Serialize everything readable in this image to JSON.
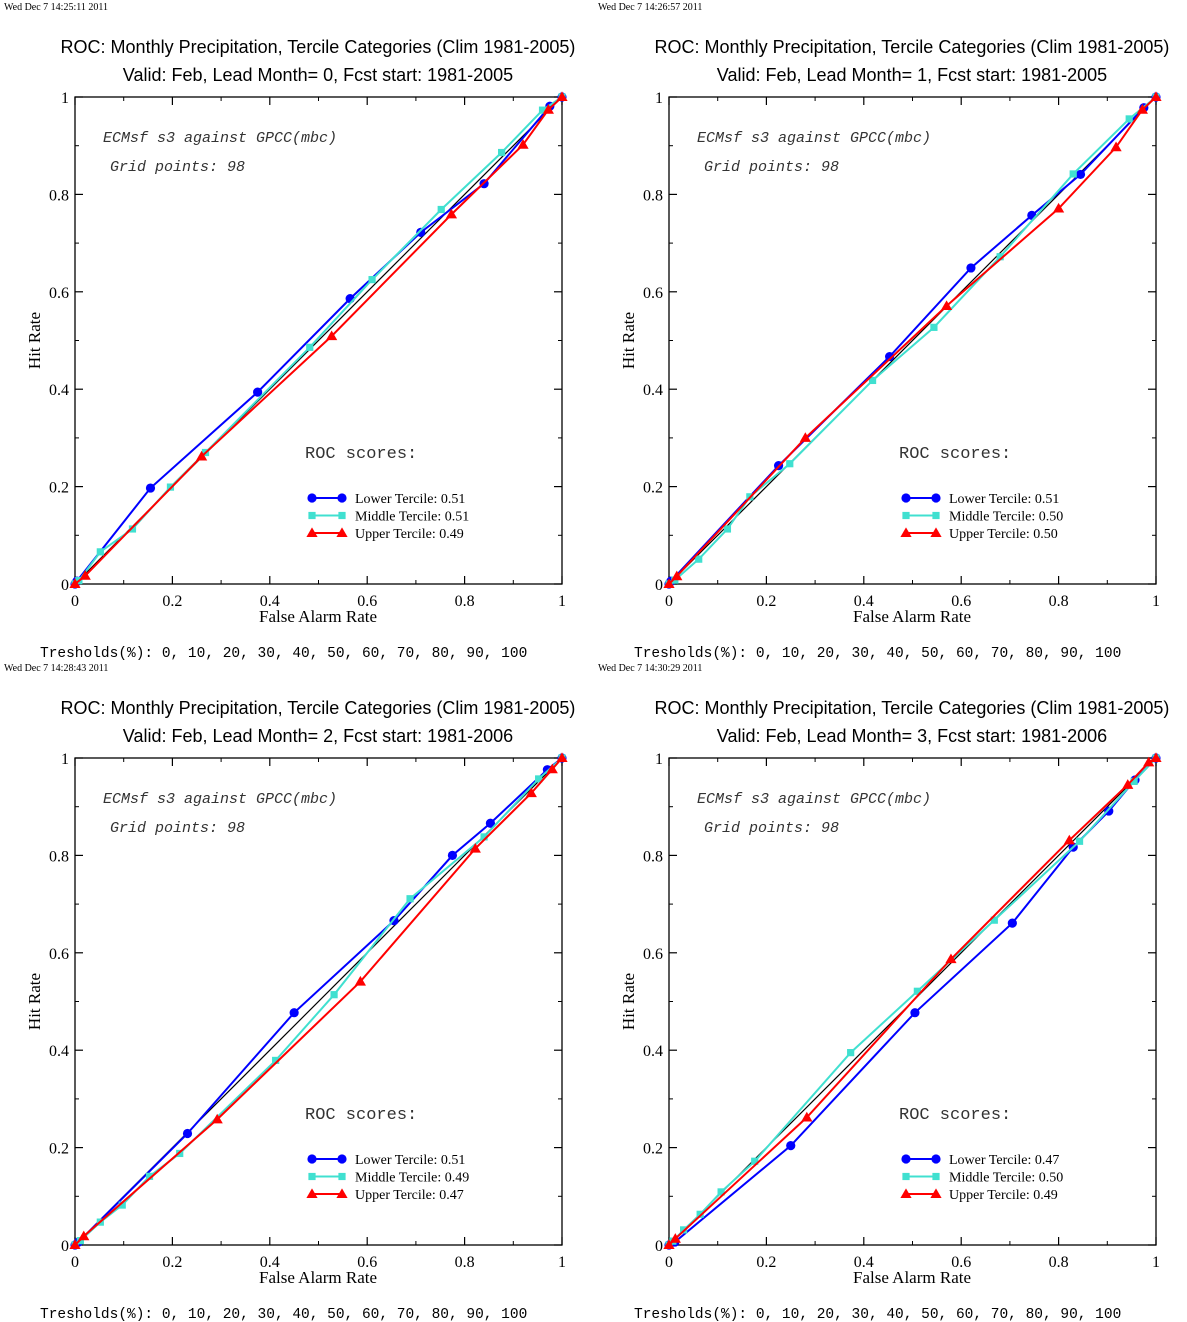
{
  "chart_data": [
    {
      "type": "line",
      "timestamp": "Wed Dec  7 14:25:11 2011",
      "title": "ROC: Monthly Precipitation, Tercile Categories (Clim 1981-2005)",
      "subtitle": "Valid: Feb, Lead Month= 0, Fcst start: 1981-2005",
      "xlabel": "False Alarm Rate",
      "ylabel": "Hit Rate",
      "xlim": [
        0,
        1
      ],
      "ylim": [
        0,
        1
      ],
      "xticks": [
        "0",
        "0.2",
        "0.4",
        "0.6",
        "0.8",
        "1"
      ],
      "yticks": [
        "0",
        "0.2",
        "0.4",
        "0.6",
        "0.8",
        "1"
      ],
      "note_line1": "ECMsf s3 against GPCC(mbc)",
      "note_line2": "Grid points:   98",
      "scores_heading": "ROC scores:",
      "thresholds": "Tresholds(%): 0, 10, 20, 30, 40, 50, 60, 70, 80, 90, 100",
      "diagonal": true,
      "series": [
        {
          "name": "Lower Tercile: 0.51",
          "color": "#0000ff",
          "marker": "circle",
          "x": [
            0,
            0.004,
            0.155,
            0.375,
            0.565,
            0.71,
            0.84,
            0.975,
            1
          ],
          "y": [
            0,
            0.006,
            0.197,
            0.394,
            0.586,
            0.722,
            0.822,
            0.981,
            1
          ]
        },
        {
          "name": "Middle Tercile: 0.51",
          "color": "#40e0d0",
          "marker": "square",
          "x": [
            0,
            0.008,
            0.052,
            0.118,
            0.196,
            0.268,
            0.482,
            0.61,
            0.752,
            0.876,
            0.96,
            1
          ],
          "y": [
            0,
            0.007,
            0.066,
            0.113,
            0.199,
            0.27,
            0.486,
            0.625,
            0.769,
            0.886,
            0.973,
            1
          ]
        },
        {
          "name": "Upper Tercile: 0.49",
          "color": "#ff0000",
          "marker": "triangle",
          "x": [
            0,
            0.021,
            0.26,
            0.527,
            0.773,
            0.92,
            0.972,
            1
          ],
          "y": [
            0,
            0.017,
            0.262,
            0.509,
            0.759,
            0.902,
            0.974,
            1
          ]
        }
      ]
    },
    {
      "type": "line",
      "timestamp": "Wed Dec  7 14:26:57 2011",
      "title": "ROC: Monthly Precipitation, Tercile Categories (Clim 1981-2005)",
      "subtitle": "Valid: Feb, Lead Month= 1, Fcst start: 1981-2005",
      "xlabel": "False Alarm Rate",
      "ylabel": "Hit Rate",
      "xlim": [
        0,
        1
      ],
      "ylim": [
        0,
        1
      ],
      "xticks": [
        "0",
        "0.2",
        "0.4",
        "0.6",
        "0.8",
        "1"
      ],
      "yticks": [
        "0",
        "0.2",
        "0.4",
        "0.6",
        "0.8",
        "1"
      ],
      "note_line1": "ECMsf s3 against GPCC(mbc)",
      "note_line2": "Grid points:   98",
      "scores_heading": "ROC scores:",
      "thresholds": "Tresholds(%): 0, 10, 20, 30, 40, 50, 60, 70, 80, 90, 100",
      "diagonal": true,
      "series": [
        {
          "name": "Lower Tercile: 0.51",
          "color": "#0000ff",
          "marker": "circle",
          "x": [
            0,
            0.004,
            0.225,
            0.453,
            0.62,
            0.745,
            0.845,
            0.975,
            1
          ],
          "y": [
            0,
            0.006,
            0.243,
            0.467,
            0.649,
            0.757,
            0.841,
            0.978,
            1
          ]
        },
        {
          "name": "Middle Tercile: 0.50",
          "color": "#40e0d0",
          "marker": "square",
          "x": [
            0,
            0.012,
            0.061,
            0.12,
            0.166,
            0.248,
            0.418,
            0.544,
            0.68,
            0.83,
            0.945,
            1
          ],
          "y": [
            0,
            0.008,
            0.051,
            0.113,
            0.179,
            0.247,
            0.418,
            0.527,
            0.672,
            0.842,
            0.955,
            1
          ]
        },
        {
          "name": "Upper Tercile: 0.50",
          "color": "#ff0000",
          "marker": "triangle",
          "x": [
            0,
            0.016,
            0.28,
            0.57,
            0.8,
            0.918,
            0.972,
            1
          ],
          "y": [
            0,
            0.016,
            0.3,
            0.571,
            0.771,
            0.897,
            0.974,
            1
          ]
        }
      ]
    },
    {
      "type": "line",
      "timestamp": "Wed Dec  7 14:28:43 2011",
      "title": "ROC: Monthly Precipitation, Tercile Categories (Clim 1981-2005)",
      "subtitle": "Valid: Feb, Lead Month= 2, Fcst start: 1981-2006",
      "xlabel": "False Alarm Rate",
      "ylabel": "Hit Rate",
      "xlim": [
        0,
        1
      ],
      "ylim": [
        0,
        1
      ],
      "xticks": [
        "0",
        "0.2",
        "0.4",
        "0.6",
        "0.8",
        "1"
      ],
      "yticks": [
        "0",
        "0.2",
        "0.4",
        "0.6",
        "0.8",
        "1"
      ],
      "note_line1": "ECMsf s3 against GPCC(mbc)",
      "note_line2": "Grid points:   98",
      "scores_heading": "ROC scores:",
      "thresholds": "Tresholds(%): 0, 10, 20, 30, 40, 50, 60, 70, 80, 90, 100",
      "diagonal": true,
      "series": [
        {
          "name": "Lower Tercile: 0.51",
          "color": "#0000ff",
          "marker": "circle",
          "x": [
            0,
            0.007,
            0.231,
            0.45,
            0.655,
            0.775,
            0.853,
            0.97,
            1
          ],
          "y": [
            0,
            0.006,
            0.229,
            0.477,
            0.666,
            0.8,
            0.866,
            0.976,
            1
          ]
        },
        {
          "name": "Middle Tercile: 0.49",
          "color": "#40e0d0",
          "marker": "square",
          "x": [
            0,
            0.011,
            0.052,
            0.097,
            0.153,
            0.215,
            0.412,
            0.532,
            0.688,
            0.84,
            0.952,
            1
          ],
          "y": [
            0,
            0.009,
            0.047,
            0.082,
            0.141,
            0.188,
            0.379,
            0.514,
            0.711,
            0.838,
            0.957,
            1
          ]
        },
        {
          "name": "Upper Tercile: 0.47",
          "color": "#ff0000",
          "marker": "triangle",
          "x": [
            0,
            0.018,
            0.292,
            0.586,
            0.822,
            0.937,
            0.98,
            1
          ],
          "y": [
            0,
            0.018,
            0.258,
            0.541,
            0.814,
            0.928,
            0.977,
            1
          ]
        }
      ]
    },
    {
      "type": "line",
      "timestamp": "Wed Dec  7 14:30:29 2011",
      "title": "ROC: Monthly Precipitation, Tercile Categories (Clim 1981-2005)",
      "subtitle": "Valid: Feb, Lead Month= 3, Fcst start: 1981-2006",
      "xlabel": "False Alarm Rate",
      "ylabel": "Hit Rate",
      "xlim": [
        0,
        1
      ],
      "ylim": [
        0,
        1
      ],
      "xticks": [
        "0",
        "0.2",
        "0.4",
        "0.6",
        "0.8",
        "1"
      ],
      "yticks": [
        "0",
        "0.2",
        "0.4",
        "0.6",
        "0.8",
        "1"
      ],
      "note_line1": "ECMsf s3 against GPCC(mbc)",
      "note_line2": "Grid points:   98",
      "scores_heading": "ROC scores:",
      "thresholds": "Tresholds(%): 0, 10, 20, 30, 40, 50, 60, 70, 80, 90, 100",
      "diagonal": true,
      "series": [
        {
          "name": "Lower Tercile: 0.47",
          "color": "#0000ff",
          "marker": "circle",
          "x": [
            0,
            0.012,
            0.25,
            0.505,
            0.705,
            0.83,
            0.903,
            0.957,
            1
          ],
          "y": [
            0,
            0.006,
            0.204,
            0.477,
            0.661,
            0.817,
            0.891,
            0.955,
            1
          ]
        },
        {
          "name": "Middle Tercile: 0.50",
          "color": "#40e0d0",
          "marker": "square",
          "x": [
            0,
            0.008,
            0.03,
            0.064,
            0.107,
            0.176,
            0.373,
            0.51,
            0.668,
            0.843,
            0.955,
            1
          ],
          "y": [
            0,
            0.008,
            0.031,
            0.063,
            0.109,
            0.172,
            0.395,
            0.521,
            0.667,
            0.829,
            0.952,
            1
          ]
        },
        {
          "name": "Upper Tercile: 0.49",
          "color": "#ff0000",
          "marker": "triangle",
          "x": [
            0,
            0.013,
            0.283,
            0.579,
            0.822,
            0.942,
            0.985,
            1
          ],
          "y": [
            0,
            0.013,
            0.262,
            0.587,
            0.831,
            0.945,
            0.991,
            1
          ]
        }
      ]
    }
  ]
}
